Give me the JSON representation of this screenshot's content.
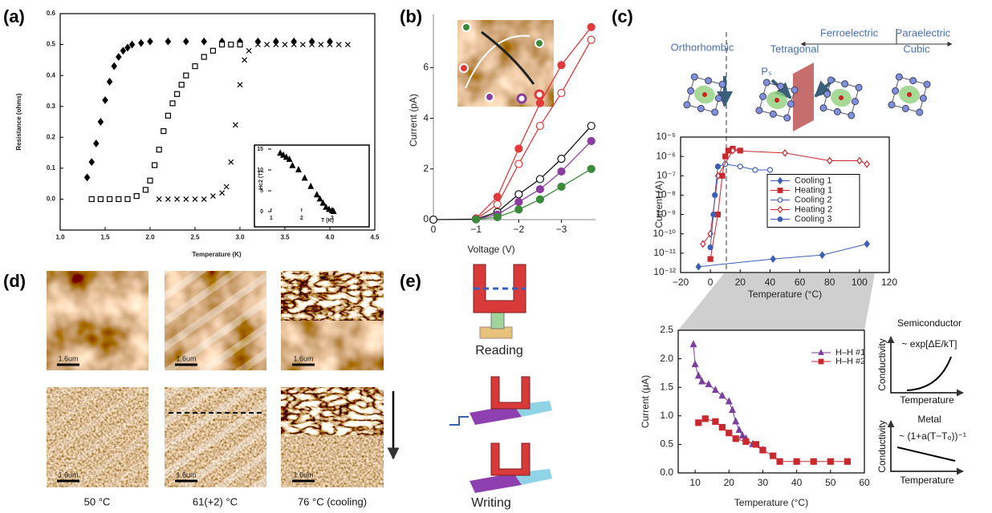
{
  "panel_labels": [
    "(a)",
    "(b)",
    "(c)",
    "(d)",
    "(e)"
  ],
  "chart_data": [
    {
      "type": "scatter",
      "xlabel": "Temperature (K)",
      "ylabel": "Resistance (ohms)",
      "xlim": [
        1,
        4.5
      ],
      "ylim": [
        -0.1,
        0.6
      ],
      "xticks": [
        {
          "value": 1,
          "label": "1.0"
        },
        1.5,
        {
          "value": 2,
          "label": "2.0"
        },
        2.5,
        {
          "value": 3,
          "label": "3.0"
        },
        3.5,
        {
          "value": 4,
          "label": "4.0"
        },
        4.5
      ],
      "yticks": [
        {
          "value": 0,
          "label": "0.0"
        },
        0.1,
        0.2,
        0.3,
        0.4,
        0.5,
        0.6
      ],
      "series": [
        {
          "marker": "diamond",
          "filled": true,
          "color": "#000000",
          "x": [
            1.3,
            1.35,
            1.4,
            1.45,
            1.5,
            1.55,
            1.6,
            1.65,
            1.7,
            1.75,
            1.8,
            1.9,
            2.0,
            2.2,
            2.4,
            2.6,
            2.8,
            3.0,
            3.2,
            3.4,
            3.6,
            3.8,
            4.0
          ],
          "values": [
            0.07,
            0.12,
            0.18,
            0.25,
            0.32,
            0.38,
            0.43,
            0.46,
            0.48,
            0.49,
            0.5,
            0.505,
            0.51,
            0.51,
            0.51,
            0.51,
            0.51,
            0.51,
            0.51,
            0.51,
            0.51,
            0.51,
            0.51
          ]
        },
        {
          "marker": "square",
          "filled": false,
          "color": "#000000",
          "x": [
            1.35,
            1.45,
            1.55,
            1.65,
            1.75,
            1.85,
            1.95,
            2.0,
            2.05,
            2.1,
            2.15,
            2.2,
            2.25,
            2.3,
            2.35,
            2.4,
            2.5,
            2.6,
            2.7,
            2.8,
            2.9,
            3.0
          ],
          "values": [
            0,
            0,
            0,
            0,
            0,
            0.01,
            0.03,
            0.06,
            0.11,
            0.16,
            0.22,
            0.27,
            0.31,
            0.34,
            0.37,
            0.4,
            0.43,
            0.46,
            0.48,
            0.5,
            0.5,
            0.5
          ]
        },
        {
          "marker": "x",
          "filled": false,
          "color": "#000000",
          "x": [
            2.1,
            2.2,
            2.3,
            2.4,
            2.5,
            2.6,
            2.7,
            2.8,
            2.85,
            2.9,
            2.95,
            3.0,
            3.05,
            3.1,
            3.2,
            3.3,
            3.4,
            3.5,
            3.6,
            3.7,
            3.8,
            3.9,
            4.0,
            4.1,
            4.2
          ],
          "values": [
            0,
            0,
            0,
            0,
            0,
            0,
            0.01,
            0.02,
            0.04,
            0.12,
            0.24,
            0.37,
            0.45,
            0.48,
            0.5,
            0.5,
            0.5,
            0.5,
            0.5,
            0.5,
            0.5,
            0.5,
            0.5,
            0.5,
            0.5
          ]
        }
      ]
    },
    {
      "type": "scatter",
      "xlabel": "T (K)",
      "ylabel": "Hc2 (T)",
      "xlim": [
        0.9,
        3.4
      ],
      "ylim": [
        0,
        15
      ],
      "xticks": [
        1,
        2,
        3
      ],
      "yticks": [
        0,
        5,
        10,
        15
      ],
      "series": [
        {
          "marker": "triangle",
          "filled": true,
          "color": "#000000",
          "x": [
            1.3,
            1.4,
            1.5,
            1.6,
            1.7,
            1.9,
            2.1,
            2.3,
            2.5,
            2.6,
            2.7,
            2.8,
            2.9,
            3.0,
            3.05
          ],
          "values": [
            14,
            13.5,
            13,
            12.5,
            11,
            10,
            8,
            6,
            4,
            3,
            2,
            1,
            0.5,
            0.2,
            0
          ]
        }
      ]
    },
    {
      "type": "line",
      "xlabel": "Voltage (V)",
      "ylabel": "Current (pA)",
      "xlim": [
        0,
        -3.8
      ],
      "ylim": [
        0,
        8.1
      ],
      "xticks": [
        0,
        {
          "value": -1,
          "label": "−1"
        },
        {
          "value": -2,
          "label": "−2"
        },
        {
          "value": -3,
          "label": "−3"
        }
      ],
      "yticks": [
        0,
        2,
        4,
        6
      ],
      "series": [
        {
          "marker": "circle",
          "filled": true,
          "color": "#e03a3a",
          "x": [
            -1,
            -1.5,
            -2,
            -2.5,
            -3,
            -3.7
          ],
          "values": [
            0.05,
            0.9,
            2.8,
            4.6,
            6.1,
            7.6
          ]
        },
        {
          "marker": "circle",
          "filled": false,
          "color": "#e03a3a",
          "x": [
            -1,
            -1.5,
            -2,
            -2.5,
            -3,
            -3.7
          ],
          "values": [
            0.02,
            0.6,
            2.2,
            3.7,
            5.0,
            7.1
          ]
        },
        {
          "marker": "circle",
          "filled": false,
          "color": "#111111",
          "x": [
            0,
            -1,
            -1.5,
            -2,
            -2.5,
            -3,
            -3.7
          ],
          "values": [
            0,
            0.02,
            0.3,
            1.0,
            1.6,
            2.4,
            3.7
          ]
        },
        {
          "marker": "circle",
          "filled": true,
          "color": "#8a3d9c",
          "x": [
            -1,
            -1.5,
            -2,
            -2.5,
            -3,
            -3.7
          ],
          "values": [
            0.02,
            0.2,
            0.7,
            1.2,
            1.9,
            3.1
          ]
        },
        {
          "marker": "circle",
          "filled": true,
          "color": "#3b8a3b",
          "x": [
            -1,
            -1.5,
            -2,
            -2.5,
            -3,
            -3.7
          ],
          "values": [
            0.01,
            0.1,
            0.4,
            0.8,
            1.3,
            2.0
          ]
        }
      ]
    },
    {
      "type": "line",
      "xlabel": "Temperature (°C)",
      "ylabel": "Current (A)",
      "yscale": "log",
      "legend": "center right",
      "xlim": [
        -20,
        120
      ],
      "ylim": [
        1e-12,
        1e-05
      ],
      "xticks": [
        {
          "value": -20,
          "label": "−20"
        },
        0,
        20,
        40,
        60,
        80,
        100,
        120
      ],
      "yticks": [
        {
          "value": 1e-12,
          "label": "10⁻¹²"
        },
        {
          "value": 1e-11,
          "label": "10⁻¹¹"
        },
        {
          "value": 1e-10,
          "label": "10⁻¹⁰"
        },
        {
          "value": 1e-09,
          "label": "10⁻⁹"
        },
        {
          "value": 1e-08,
          "label": "10⁻⁸"
        },
        {
          "value": 1e-07,
          "label": "10⁻⁷"
        },
        {
          "value": 1e-06,
          "label": "10⁻⁶"
        },
        {
          "value": 1e-05,
          "label": "10⁻⁵"
        }
      ],
      "annotations": [
        "Orthorhombic",
        "Tetragonal",
        "Ferroelectric",
        "Paraelectric",
        "Cubic",
        "Pₛ"
      ],
      "series": [
        {
          "name": "Cooling 1",
          "marker": "diamond",
          "filled": true,
          "color": "#3b5fb5",
          "x": [
            105,
            75,
            42,
            -8
          ],
          "values": [
            3e-11,
            8e-12,
            5e-12,
            2e-12
          ]
        },
        {
          "name": "Heating 1",
          "marker": "square",
          "filled": true,
          "color": "#c8282e",
          "x": [
            0,
            5,
            8,
            10,
            12,
            15,
            20
          ],
          "values": [
            5e-12,
            1e-09,
            1e-07,
            1e-06,
            2e-06,
            2.5e-06,
            2e-06
          ]
        },
        {
          "name": "Cooling 2",
          "marker": "circle",
          "filled": false,
          "color": "#3b5fb5",
          "x": [
            40,
            30,
            20,
            10,
            5
          ],
          "values": [
            2e-07,
            2e-07,
            3e-07,
            4e-07,
            3e-07
          ]
        },
        {
          "name": "Heating 2",
          "marker": "diamond",
          "filled": false,
          "color": "#c8282e",
          "x": [
            -5,
            0,
            5,
            15,
            50,
            80,
            100,
            105
          ],
          "values": [
            3e-11,
            1e-10,
            1e-07,
            2e-06,
            1.5e-06,
            6e-07,
            6e-07,
            4e-07
          ]
        },
        {
          "name": "Cooling 3",
          "marker": "circle",
          "filled": true,
          "color": "#3b5fb5",
          "x": [
            5,
            3,
            2,
            0
          ],
          "values": [
            3e-07,
            1e-08,
            1e-09,
            2e-11
          ]
        }
      ]
    },
    {
      "type": "line",
      "xlabel": "Temperature (°C)",
      "ylabel": "Current (μA)",
      "legend": "upper right",
      "xlim": [
        5,
        60
      ],
      "ylim": [
        0,
        2.5
      ],
      "xticks": [
        10,
        20,
        30,
        40,
        50,
        60
      ],
      "yticks": [
        {
          "value": 0,
          "label": "0.0"
        },
        0.5,
        {
          "value": 1,
          "label": "1.0"
        },
        1.5,
        {
          "value": 2,
          "label": "2.0"
        },
        2.5
      ],
      "series": [
        {
          "name": "H–H #1",
          "marker": "triangle",
          "filled": true,
          "color": "#7b3f9e",
          "x": [
            9.5,
            10,
            11,
            12,
            14,
            16,
            18,
            20,
            21,
            22,
            23,
            24,
            25,
            27,
            30
          ],
          "values": [
            2.25,
            1.9,
            1.7,
            1.6,
            1.55,
            1.45,
            1.35,
            1.25,
            1.1,
            0.9,
            0.75,
            0.65,
            0.6,
            0.5,
            0.4
          ]
        },
        {
          "name": "H–H #2",
          "marker": "square",
          "filled": true,
          "color": "#c8282e",
          "x": [
            11,
            13,
            16,
            18,
            20,
            22,
            25,
            28,
            30,
            33,
            35,
            40,
            45,
            50,
            55
          ],
          "values": [
            0.88,
            0.95,
            0.9,
            0.8,
            0.7,
            0.6,
            0.55,
            0.5,
            0.4,
            0.3,
            0.2,
            0.2,
            0.2,
            0.2,
            0.2
          ]
        }
      ]
    }
  ],
  "schematics": [
    {
      "title": "Semiconductor",
      "formula": "~ exp[ΔE/kT]",
      "ylabel": "Conductivity",
      "xlabel": "Temperature"
    },
    {
      "title": "Metal",
      "formula": "~ (1+a(T−T₀))⁻¹",
      "ylabel": "Conductivity",
      "xlabel": "Temperature"
    }
  ],
  "afm": {
    "captions": [
      "50 °C",
      "61(+2) °C",
      "76 °C (cooling)"
    ],
    "scale_bar": "1.6um"
  },
  "heads": {
    "reading": "Reading",
    "writing": "Writing"
  }
}
